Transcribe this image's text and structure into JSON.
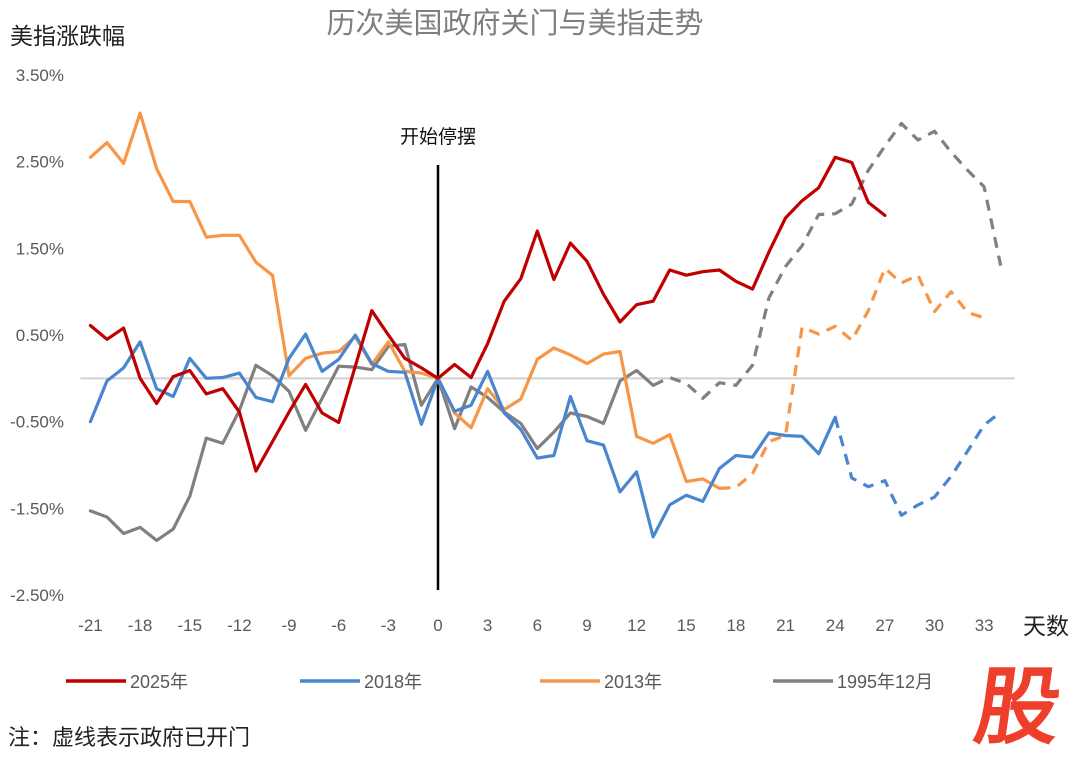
{
  "chart_data": {
    "type": "line",
    "title": "历次美国政府关门与美指走势",
    "ylabel": "美指涨跌幅",
    "xlabel": "天数",
    "ylim": [
      -2.5,
      3.5
    ],
    "xlim": [
      -21,
      34
    ],
    "yticks": [
      3.5,
      2.5,
      1.5,
      0.5,
      -0.5,
      -1.5,
      -2.5
    ],
    "ytick_labels": [
      "3.50%",
      "2.50%",
      "1.50%",
      "0.50%",
      "-0.50%",
      "-1.50%",
      "-2.50%"
    ],
    "xticks": [
      -21,
      -18,
      -15,
      -12,
      -9,
      -6,
      -3,
      0,
      3,
      6,
      9,
      12,
      15,
      18,
      21,
      24,
      27,
      30,
      33
    ],
    "xtick_labels": [
      "-21",
      "-18",
      "-15",
      "-12",
      "-9",
      "-6",
      "-3",
      "0",
      "3",
      "6",
      "9",
      "12",
      "15",
      "18",
      "21",
      "24",
      "27",
      "30",
      "33"
    ],
    "grid": false,
    "zero_line": true,
    "annotation": {
      "label": "开始停摆",
      "x": 0
    },
    "legend_position": "bottom",
    "series": [
      {
        "name": "2025年",
        "color": "#c00000",
        "x_start": -21,
        "dashed_from": null,
        "values": [
          0.61,
          0.45,
          0.58,
          0.0,
          -0.29,
          0.02,
          0.09,
          -0.18,
          -0.12,
          -0.39,
          -1.07,
          -0.73,
          -0.39,
          -0.07,
          -0.4,
          -0.51,
          0.14,
          0.78,
          0.5,
          0.23,
          0.12,
          0.0,
          0.16,
          0.01,
          0.4,
          0.89,
          1.15,
          1.7,
          1.14,
          1.56,
          1.35,
          0.97,
          0.65,
          0.85,
          0.89,
          1.25,
          1.19,
          1.23,
          1.25,
          1.12,
          1.03,
          1.46,
          1.85,
          2.05,
          2.2,
          2.55,
          2.49,
          2.03,
          1.88
        ]
      },
      {
        "name": "2018年",
        "color": "#4a86d0",
        "x_start": -21,
        "dashed_from": 24,
        "values": [
          -0.5,
          -0.03,
          0.12,
          0.42,
          -0.12,
          -0.21,
          0.23,
          0.0,
          0.01,
          0.06,
          -0.22,
          -0.27,
          0.23,
          0.51,
          0.08,
          0.22,
          0.5,
          0.17,
          0.08,
          0.07,
          -0.53,
          0.0,
          -0.38,
          -0.31,
          0.08,
          -0.4,
          -0.59,
          -0.92,
          -0.89,
          -0.21,
          -0.72,
          -0.77,
          -1.31,
          -1.08,
          -1.83,
          -1.46,
          -1.35,
          -1.42,
          -1.04,
          -0.89,
          -0.91,
          -0.63,
          -0.66,
          -0.67,
          -0.87,
          -0.45,
          -1.15,
          -1.25,
          -1.18,
          -1.58,
          -1.46,
          -1.37,
          -1.13,
          -0.84,
          -0.54,
          -0.39
        ]
      },
      {
        "name": "2013年",
        "color": "#f79646",
        "x_start": -21,
        "dashed_from": 17,
        "values": [
          2.55,
          2.72,
          2.48,
          3.06,
          2.42,
          2.04,
          2.04,
          1.63,
          1.65,
          1.65,
          1.34,
          1.19,
          0.03,
          0.23,
          0.29,
          0.31,
          0.48,
          0.16,
          0.42,
          0.08,
          0.06,
          0.0,
          -0.4,
          -0.57,
          -0.12,
          -0.36,
          -0.24,
          0.22,
          0.35,
          0.27,
          0.17,
          0.28,
          0.31,
          -0.67,
          -0.75,
          -0.65,
          -1.19,
          -1.16,
          -1.27,
          -1.26,
          -1.1,
          -0.73,
          -0.66,
          0.59,
          0.51,
          0.6,
          0.44,
          0.78,
          1.27,
          1.1,
          1.19,
          0.77,
          1.0,
          0.76,
          0.7
        ]
      },
      {
        "name": "1995年12月",
        "color": "#808080",
        "x_start": -21,
        "dashed_from": 13,
        "values": [
          -1.53,
          -1.6,
          -1.79,
          -1.72,
          -1.87,
          -1.74,
          -1.36,
          -0.69,
          -0.75,
          -0.37,
          0.15,
          0.03,
          -0.15,
          -0.6,
          -0.23,
          0.14,
          0.13,
          0.1,
          0.37,
          0.39,
          -0.31,
          0.0,
          -0.58,
          -0.1,
          -0.22,
          -0.39,
          -0.52,
          -0.81,
          -0.62,
          -0.4,
          -0.44,
          -0.52,
          -0.03,
          0.09,
          -0.08,
          0.01,
          -0.06,
          -0.23,
          -0.05,
          -0.08,
          0.15,
          0.93,
          1.29,
          1.53,
          1.89,
          1.9,
          2.01,
          2.4,
          2.68,
          2.94,
          2.75,
          2.85,
          2.61,
          2.4,
          2.21,
          1.3
        ]
      }
    ]
  },
  "footer": {
    "note": "注：虚线表示政府已开门",
    "logo_glyph": "股"
  }
}
